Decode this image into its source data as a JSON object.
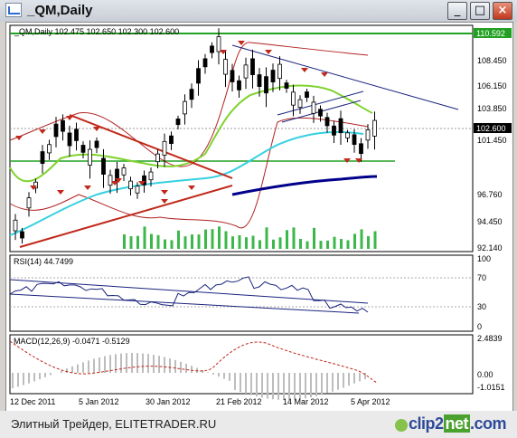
{
  "window": {
    "title": "_QM,Daily",
    "buttons": {
      "minimize": "_",
      "maximize": "□",
      "close": "×"
    }
  },
  "main_chart": {
    "legend": "_QM,Daily  102.475 102.650 102.300 102.600",
    "y_ticks": [
      "110.592",
      "108.450",
      "106.150",
      "103.850",
      "102.600",
      "101.450",
      "96.760",
      "94.450",
      "92.140"
    ],
    "current_price": "102.600",
    "top_level": "110.592"
  },
  "rsi_panel": {
    "label": "RSI(14) 44.7499",
    "y_ticks": [
      "100",
      "70",
      "30",
      "0"
    ]
  },
  "macd_panel": {
    "label": "MACD(12,26,9) -0.0471 -0.5129",
    "y_ticks": [
      "2.4839",
      "0.00",
      "-1.0151"
    ]
  },
  "x_axis": [
    "12 Dec 2011",
    "5 Jan 2012",
    "30 Jan 2012",
    "21 Feb 2012",
    "14 Mar 2012",
    "5 Apr 2012"
  ],
  "status_bar": {
    "text": "Элитный Трейдер, ELITETRADER.RU",
    "logo_a": "clip2",
    "logo_b": "net",
    "logo_c": ".com"
  },
  "colors": {
    "green_ma": "#7fd32e",
    "cyan_ma": "#35d0e0",
    "navy_ma": "#00008b",
    "bollinger": "#b22222",
    "trend_red": "#c0281a",
    "trend_blue": "#1a237e",
    "fractal": "#c0281a",
    "support_green": "#22a022",
    "volume": "#3cb84a"
  }
}
